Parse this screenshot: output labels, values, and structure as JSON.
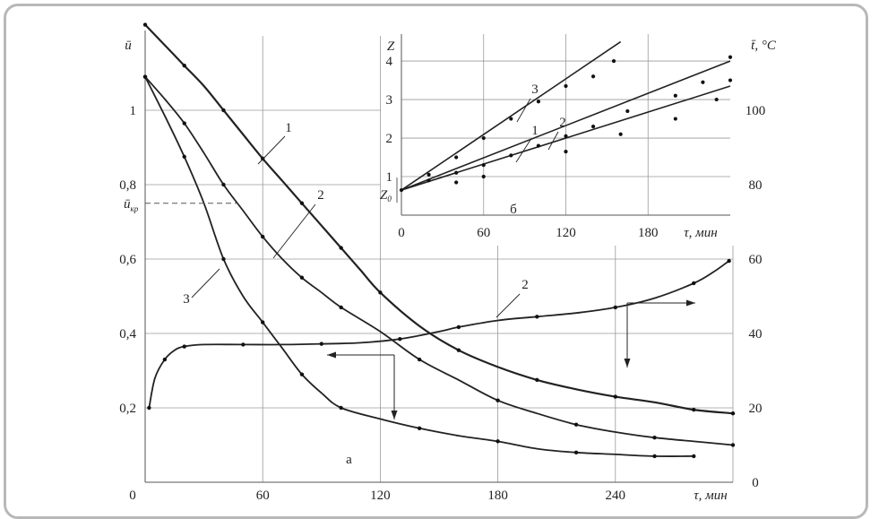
{
  "chart_data": [
    {
      "panel": "а",
      "type": "line",
      "grid": true,
      "xlabel": "τ, мин",
      "ylabel_left": "ū",
      "ylabel_right": "t̄, °C",
      "xlim": [
        0,
        300
      ],
      "ylim_left": [
        0,
        1.2
      ],
      "ylim_right": [
        0,
        120
      ],
      "x_ticks": [
        "0",
        "60",
        "120",
        "180",
        "240"
      ],
      "y_ticks_left": [
        "0,2",
        "0,4",
        "0,6",
        "0,8",
        "1"
      ],
      "y_ticks_right": [
        "0",
        "20",
        "40",
        "60",
        "80",
        "100"
      ],
      "critical_label": "ū",
      "critical_label_sub": "кр",
      "critical_value": 0.75,
      "series": [
        {
          "name": "1",
          "axis": "left",
          "x": [
            0,
            10,
            20,
            30,
            40,
            50,
            60,
            70,
            80,
            90,
            100,
            110,
            120,
            140,
            160,
            180,
            200,
            220,
            240,
            260,
            280,
            300
          ],
          "y": [
            1.23,
            1.175,
            1.12,
            1.065,
            1.0,
            0.935,
            0.87,
            0.81,
            0.75,
            0.69,
            0.63,
            0.57,
            0.51,
            0.42,
            0.355,
            0.31,
            0.275,
            0.25,
            0.23,
            0.215,
            0.195,
            0.185
          ]
        },
        {
          "name": "2",
          "axis": "left",
          "x": [
            0,
            10,
            20,
            30,
            40,
            50,
            60,
            70,
            80,
            90,
            100,
            120,
            140,
            160,
            180,
            200,
            220,
            240,
            260,
            280,
            300
          ],
          "y": [
            1.09,
            1.03,
            0.965,
            0.885,
            0.8,
            0.73,
            0.66,
            0.6,
            0.55,
            0.51,
            0.47,
            0.405,
            0.33,
            0.275,
            0.22,
            0.185,
            0.155,
            0.135,
            0.12,
            0.11,
            0.1
          ]
        },
        {
          "name": "3",
          "axis": "left",
          "x": [
            0,
            10,
            20,
            30,
            40,
            50,
            60,
            70,
            80,
            90,
            100,
            120,
            140,
            160,
            180,
            200,
            220,
            240,
            260,
            280
          ],
          "y": [
            1.09,
            0.985,
            0.875,
            0.75,
            0.6,
            0.5,
            0.43,
            0.36,
            0.29,
            0.24,
            0.2,
            0.17,
            0.145,
            0.125,
            0.11,
            0.09,
            0.08,
            0.075,
            0.07,
            0.07
          ]
        },
        {
          "name": "2",
          "axis": "right",
          "x": [
            2,
            5,
            10,
            15,
            20,
            30,
            50,
            70,
            90,
            110,
            130,
            150,
            160,
            180,
            200,
            220,
            240,
            260,
            280,
            290,
            298
          ],
          "y": [
            20,
            28,
            33,
            35.5,
            36.5,
            37,
            37,
            37,
            37.2,
            37.5,
            38.5,
            40.5,
            41.7,
            43.5,
            44.5,
            45.5,
            47,
            49.5,
            53.5,
            56.5,
            59.5
          ]
        }
      ]
    },
    {
      "panel": "б",
      "type": "line",
      "grid": true,
      "xlabel": "τ, мин",
      "ylabel": "Z",
      "intercept_label": "Z",
      "intercept_label_sub": "0",
      "xlim": [
        0,
        240
      ],
      "ylim": [
        0,
        4.7
      ],
      "x_ticks": [
        "0",
        "60",
        "120",
        "180"
      ],
      "y_ticks": [
        "1",
        "2",
        "3",
        "4"
      ],
      "series": [
        {
          "name": "3",
          "x": [
            0,
            160
          ],
          "y": [
            0.65,
            4.5
          ]
        },
        {
          "name": "1",
          "x": [
            0,
            240
          ],
          "y": [
            0.65,
            4.0
          ]
        },
        {
          "name": "2",
          "x": [
            0,
            240
          ],
          "y": [
            0.65,
            3.35
          ]
        }
      ],
      "points": [
        {
          "x": [
            0,
            20,
            40,
            60,
            80,
            100,
            120,
            140,
            155
          ],
          "y": [
            0.65,
            1.05,
            1.5,
            2.0,
            2.5,
            2.95,
            3.35,
            3.6,
            4.0
          ]
        },
        {
          "x": [
            20,
            40,
            60,
            80,
            100,
            120,
            140,
            165,
            200,
            220,
            240
          ],
          "y": [
            0.9,
            1.1,
            1.3,
            1.55,
            1.8,
            2.05,
            2.3,
            2.7,
            3.1,
            3.45,
            4.1
          ]
        },
        {
          "x": [
            40,
            60,
            120,
            160,
            200,
            230,
            240
          ],
          "y": [
            0.85,
            1.0,
            1.65,
            2.1,
            2.5,
            3.0,
            3.5
          ]
        }
      ]
    }
  ]
}
